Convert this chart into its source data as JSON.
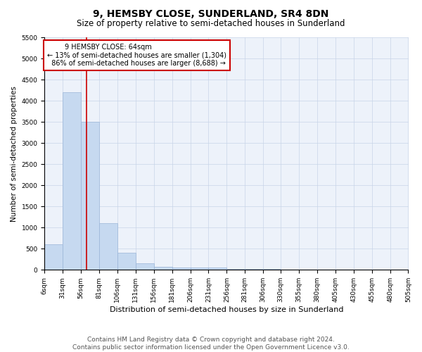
{
  "title": "9, HEMSBY CLOSE, SUNDERLAND, SR4 8DN",
  "subtitle": "Size of property relative to semi-detached houses in Sunderland",
  "xlabel": "Distribution of semi-detached houses by size in Sunderland",
  "ylabel": "Number of semi-detached properties",
  "footnote1": "Contains HM Land Registry data © Crown copyright and database right 2024.",
  "footnote2": "Contains public sector information licensed under the Open Government Licence v3.0.",
  "annotation_title": "9 HEMSBY CLOSE: 64sqm",
  "annotation_line1": "← 13% of semi-detached houses are smaller (1,304)",
  "annotation_line2": "86% of semi-detached houses are larger (8,688) →",
  "property_size": 64,
  "bin_edges": [
    6,
    31,
    56,
    81,
    106,
    131,
    156,
    181,
    206,
    231,
    256,
    281,
    306,
    330,
    355,
    380,
    405,
    430,
    455,
    480,
    505
  ],
  "bar_heights": [
    600,
    4200,
    3500,
    1100,
    400,
    150,
    70,
    60,
    60,
    50,
    30,
    20,
    15,
    10,
    8,
    5,
    5,
    5,
    5,
    5
  ],
  "bar_color": "#c6d9f0",
  "bar_edgecolor": "#9ab5d8",
  "redline_color": "#cc0000",
  "annotation_box_color": "#cc0000",
  "grid_color": "#c8d4e8",
  "bg_color": "#edf2fa",
  "ylim": [
    0,
    5500
  ],
  "yticks": [
    0,
    500,
    1000,
    1500,
    2000,
    2500,
    3000,
    3500,
    4000,
    4500,
    5000,
    5500
  ],
  "title_fontsize": 10,
  "subtitle_fontsize": 8.5,
  "tick_fontsize": 6.5,
  "ylabel_fontsize": 7.5,
  "xlabel_fontsize": 8,
  "annotation_fontsize": 7,
  "footnote_fontsize": 6.5
}
